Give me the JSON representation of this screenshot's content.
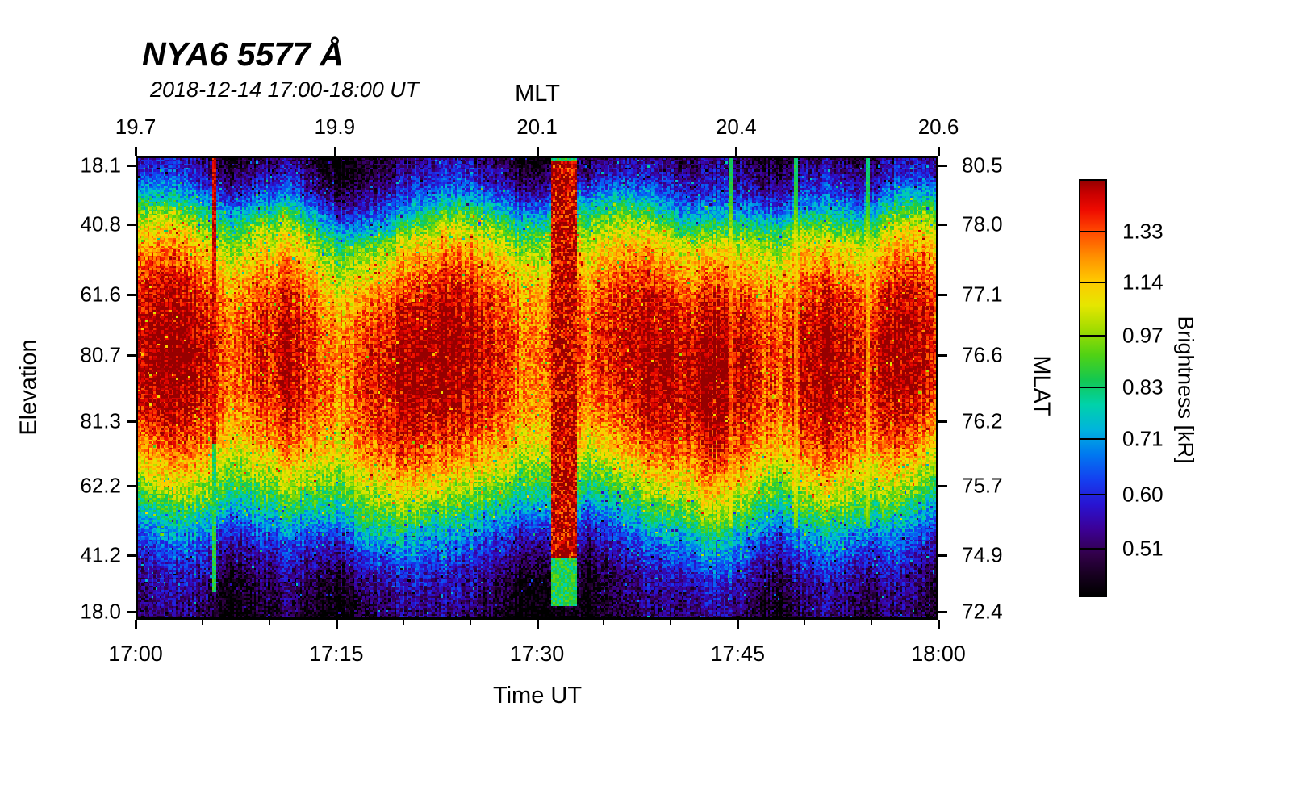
{
  "chart_data": {
    "type": "heatmap",
    "title": "NYA6 5577 Å",
    "subtitle": "2018-12-14 17:00-18:00 UT",
    "top_axis": {
      "label": "MLT",
      "ticks": [
        {
          "label": "19.7",
          "pos": 0.0
        },
        {
          "label": "19.9",
          "pos": 0.248
        },
        {
          "label": "20.1",
          "pos": 0.5
        },
        {
          "label": "20.4",
          "pos": 0.748
        },
        {
          "label": "20.6",
          "pos": 1.0
        }
      ]
    },
    "bottom_axis": {
      "label": "Time UT",
      "ticks": [
        {
          "label": "17:00",
          "pos": 0.0
        },
        {
          "label": "17:15",
          "pos": 0.25
        },
        {
          "label": "17:30",
          "pos": 0.5
        },
        {
          "label": "17:45",
          "pos": 0.75
        },
        {
          "label": "18:00",
          "pos": 1.0
        }
      ]
    },
    "left_axis": {
      "label": "Elevation",
      "ticks": [
        {
          "label": "18.1",
          "pos": 0.021
        },
        {
          "label": "40.8",
          "pos": 0.148
        },
        {
          "label": "61.6",
          "pos": 0.299
        },
        {
          "label": "80.7",
          "pos": 0.43
        },
        {
          "label": "81.3",
          "pos": 0.572
        },
        {
          "label": "62.2",
          "pos": 0.711
        },
        {
          "label": "41.2",
          "pos": 0.861
        },
        {
          "label": "18.0",
          "pos": 0.983
        }
      ]
    },
    "right_axis": {
      "label": "MLAT",
      "ticks": [
        {
          "label": "80.5",
          "pos": 0.021
        },
        {
          "label": "78.0",
          "pos": 0.148
        },
        {
          "label": "77.1",
          "pos": 0.299
        },
        {
          "label": "76.6",
          "pos": 0.43
        },
        {
          "label": "76.2",
          "pos": 0.572
        },
        {
          "label": "75.7",
          "pos": 0.711
        },
        {
          "label": "74.9",
          "pos": 0.861
        },
        {
          "label": "72.4",
          "pos": 0.983
        }
      ]
    },
    "colorbar": {
      "label": "Brightness [kR]",
      "ticks": [
        1.33,
        1.14,
        0.97,
        0.83,
        0.71,
        0.6,
        0.51
      ],
      "scale": "log",
      "vmin": 0.44,
      "vmax": 1.56,
      "stops": [
        [
          0.0,
          "#000000"
        ],
        [
          0.05,
          "#170020"
        ],
        [
          0.1,
          "#32004a"
        ],
        [
          0.16,
          "#3c0096"
        ],
        [
          0.22,
          "#2814d2"
        ],
        [
          0.28,
          "#1440f0"
        ],
        [
          0.34,
          "#0078f0"
        ],
        [
          0.4,
          "#00b4dc"
        ],
        [
          0.46,
          "#00d2aa"
        ],
        [
          0.52,
          "#14c850"
        ],
        [
          0.58,
          "#50d214"
        ],
        [
          0.64,
          "#a0dc00"
        ],
        [
          0.7,
          "#e6e600"
        ],
        [
          0.76,
          "#ffc800"
        ],
        [
          0.82,
          "#ff8c00"
        ],
        [
          0.88,
          "#ff4600"
        ],
        [
          0.93,
          "#ee0a00"
        ],
        [
          0.97,
          "#c80000"
        ],
        [
          1.0,
          "#960000"
        ]
      ]
    },
    "field": {
      "description": "Meridian keogram of 557.7 nm brightness vs elevation and time; bright red band near zenith, dark at low elevations, full-height saturated calibration stripe at ~17:31-17:33 and thin bright line at ~17:06.",
      "noise_amp": 0.12,
      "mod_exponent": 2.2,
      "profile": [
        [
          0.0,
          0.465
        ],
        [
          0.03,
          0.5
        ],
        [
          0.07,
          0.56
        ],
        [
          0.105,
          0.655
        ],
        [
          0.135,
          0.78
        ],
        [
          0.165,
          0.92
        ],
        [
          0.205,
          1.04
        ],
        [
          0.25,
          1.16
        ],
        [
          0.3,
          1.28
        ],
        [
          0.36,
          1.36
        ],
        [
          0.43,
          1.4
        ],
        [
          0.5,
          1.38
        ],
        [
          0.56,
          1.32
        ],
        [
          0.62,
          1.2
        ],
        [
          0.67,
          1.06
        ],
        [
          0.72,
          0.92
        ],
        [
          0.76,
          0.8
        ],
        [
          0.8,
          0.68
        ],
        [
          0.84,
          0.595
        ],
        [
          0.88,
          0.535
        ],
        [
          0.92,
          0.49
        ],
        [
          1.0,
          0.455
        ]
      ],
      "time_mod": [
        [
          0.0,
          1.05
        ],
        [
          0.04,
          1.08
        ],
        [
          0.08,
          1.05
        ],
        [
          0.12,
          0.965
        ],
        [
          0.155,
          1.01
        ],
        [
          0.19,
          1.035
        ],
        [
          0.225,
          0.99
        ],
        [
          0.26,
          0.955
        ],
        [
          0.3,
          1.02
        ],
        [
          0.34,
          1.06
        ],
        [
          0.38,
          1.075
        ],
        [
          0.42,
          1.055
        ],
        [
          0.46,
          0.985
        ],
        [
          0.5,
          0.945
        ],
        [
          0.535,
          1.0
        ],
        [
          0.57,
          0.975
        ],
        [
          0.61,
          1.035
        ],
        [
          0.645,
          1.06
        ],
        [
          0.68,
          1.03
        ],
        [
          0.715,
          1.06
        ],
        [
          0.75,
          1.05
        ],
        [
          0.78,
          1.0
        ],
        [
          0.805,
          0.985
        ],
        [
          0.835,
          1.045
        ],
        [
          0.865,
          1.065
        ],
        [
          0.89,
          1.03
        ],
        [
          0.915,
          1.01
        ],
        [
          0.945,
          1.06
        ],
        [
          0.975,
          1.045
        ],
        [
          1.0,
          1.01
        ]
      ],
      "features": {
        "thin_line": {
          "t": 0.097,
          "width": 0.002,
          "red_until": 0.62,
          "green_until": 0.94,
          "red_value": 1.45,
          "green_value": 0.85
        },
        "wide_stripe": {
          "t0": 0.517,
          "t1": 0.549,
          "red_from": 0.012,
          "red_until": 0.865,
          "green_until": 0.97,
          "red_value": 1.52,
          "green_value": 0.86
        },
        "seams": [
          {
            "t": 0.742,
            "width": 0.003
          },
          {
            "t": 0.822,
            "width": 0.003
          },
          {
            "t": 0.912,
            "width": 0.003
          }
        ]
      }
    }
  }
}
